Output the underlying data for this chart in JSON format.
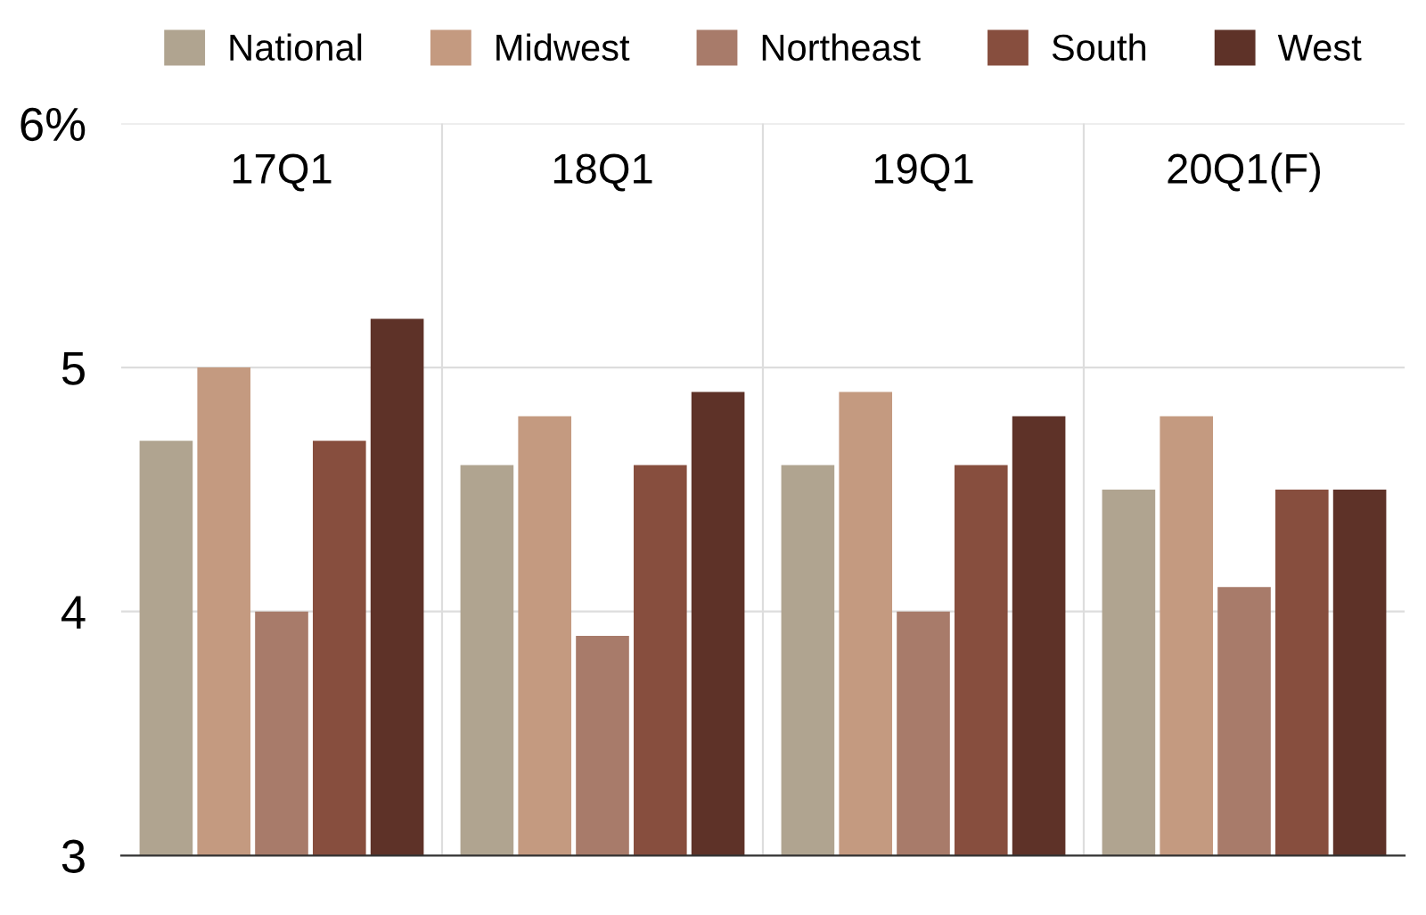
{
  "chart_data": {
    "type": "bar",
    "categories": [
      "17Q1",
      "18Q1",
      "19Q1",
      "20Q1(F)"
    ],
    "series": [
      {
        "name": "National",
        "color": "#b0a490",
        "values": [
          4.7,
          4.6,
          4.6,
          4.5
        ]
      },
      {
        "name": "Midwest",
        "color": "#c49a80",
        "values": [
          5.0,
          4.8,
          4.9,
          4.8
        ]
      },
      {
        "name": "Northeast",
        "color": "#a87b6a",
        "values": [
          4.0,
          3.9,
          4.0,
          4.1
        ]
      },
      {
        "name": "South",
        "color": "#874e3e",
        "values": [
          4.7,
          4.6,
          4.6,
          4.5
        ]
      },
      {
        "name": "West",
        "color": "#5e3228",
        "values": [
          5.2,
          4.9,
          4.8,
          4.5
        ]
      }
    ],
    "ylim": [
      3,
      6
    ],
    "yticks": [
      3,
      4,
      5,
      {
        "value": 6,
        "label": "6%"
      }
    ],
    "grid": true,
    "legend": "top"
  }
}
